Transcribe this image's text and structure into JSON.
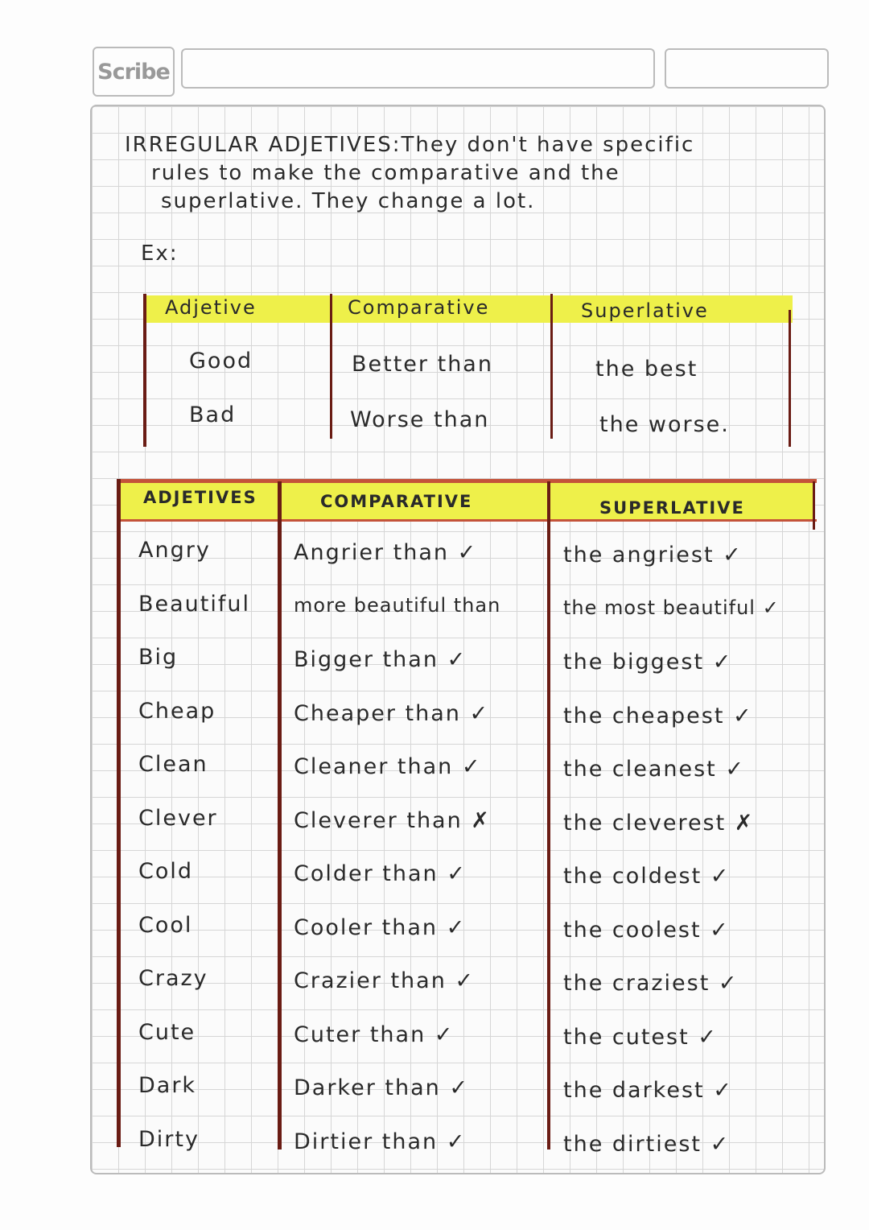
{
  "header": {
    "logo_text": "Scribe"
  },
  "intro": {
    "line1": "IRREGULAR ADJETIVES:They don't have specific",
    "line2": "rules to make the comparative and the",
    "line3": "superlative. They change a lot.",
    "example_label": "Ex:"
  },
  "irregular_table": {
    "headers": [
      "Adjetive",
      "Comparative",
      "Superlative"
    ],
    "rows": [
      [
        "Good",
        "Better than",
        "the best"
      ],
      [
        "Bad",
        "Worse than",
        "the worse."
      ]
    ]
  },
  "regular_table": {
    "headers": [
      "ADJETIVES",
      "COMPARATIVE",
      "SUPERLATIVE"
    ],
    "rows": [
      [
        "Angry",
        "Angrier than ✓",
        "the angriest ✓"
      ],
      [
        "Beautiful",
        "more beautiful than",
        "the most beautiful ✓"
      ],
      [
        "Big",
        "Bigger than ✓",
        "the biggest ✓"
      ],
      [
        "Cheap",
        "Cheaper than ✓",
        "the cheapest ✓"
      ],
      [
        "Clean",
        "Cleaner than ✓",
        "the cleanest ✓"
      ],
      [
        "Clever",
        "Cleverer than ✗",
        "the cleverest ✗"
      ],
      [
        "Cold",
        "Colder than ✓",
        "the coldest ✓"
      ],
      [
        "Cool",
        "Cooler than ✓",
        "the coolest ✓"
      ],
      [
        "Crazy",
        "Crazier than ✓",
        "the craziest ✓"
      ],
      [
        "Cute",
        "Cuter than ✓",
        "the cutest ✓"
      ],
      [
        "Dark",
        "Darker than ✓",
        "the darkest ✓"
      ],
      [
        "Dirty",
        "Dirtier than ✓",
        "the dirtiest ✓"
      ]
    ]
  },
  "colors": {
    "highlight": "#eef04a",
    "ink": "#2a2a2a",
    "table_line": "#6a1c14"
  }
}
